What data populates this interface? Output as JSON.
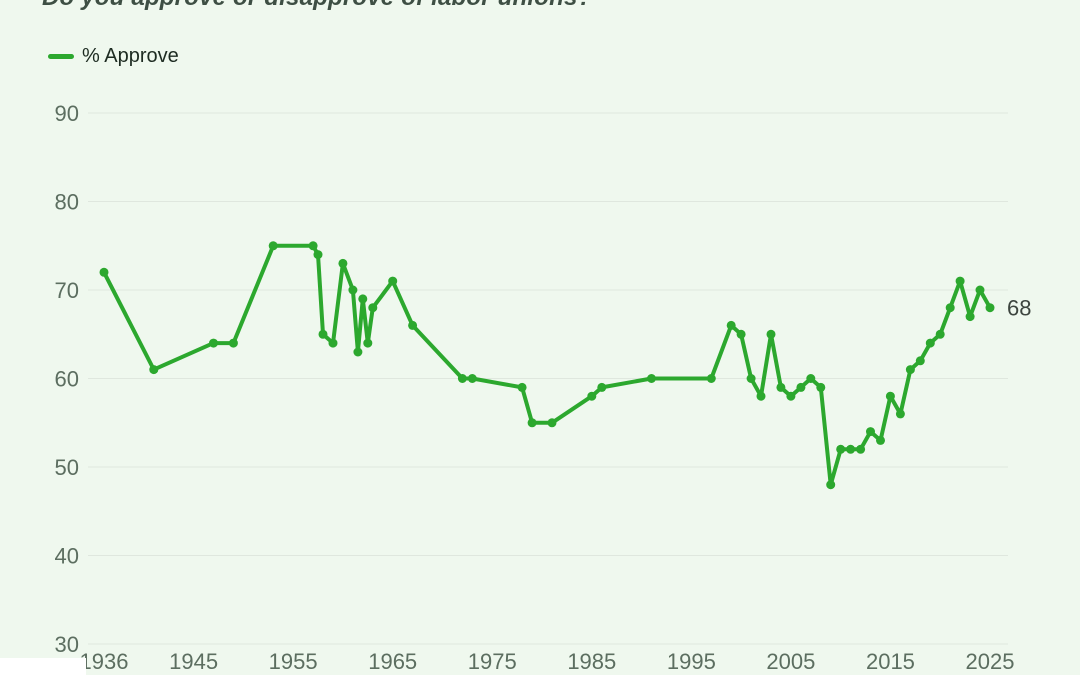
{
  "page": {
    "title": "Do you approve or disapprove of labor unions?"
  },
  "legend": {
    "label": "% Approve"
  },
  "colors": {
    "line": "#2ca82e",
    "background": "#eff8ee",
    "grid": "#dfe7de",
    "tick_text": "#5c6e60",
    "end_label_text": "#3d453f",
    "title_text": "#3e4f44",
    "legend_text": "#1d2b21"
  },
  "chart_data": {
    "type": "line",
    "title": "Do you approve or disapprove of labor unions?",
    "legend_entries": [
      "% Approve"
    ],
    "legend_position": "top-left",
    "grid": "horizontal",
    "xlim": [
      1936,
      2025
    ],
    "ylim": [
      30,
      90
    ],
    "xticks": [
      1936,
      1945,
      1955,
      1965,
      1975,
      1985,
      1995,
      2005,
      2015,
      2025
    ],
    "yticks": [
      90,
      80,
      70,
      60,
      50,
      40,
      30
    ],
    "end_label": "68",
    "series": [
      {
        "name": "% Approve",
        "color": "#2ca82e",
        "points": [
          [
            1936,
            72
          ],
          [
            1941,
            61
          ],
          [
            1947,
            64
          ],
          [
            1949,
            64
          ],
          [
            1953,
            75
          ],
          [
            1957,
            75
          ],
          [
            1957.5,
            74
          ],
          [
            1958,
            65
          ],
          [
            1959,
            64
          ],
          [
            1960,
            73
          ],
          [
            1961,
            70
          ],
          [
            1961.5,
            63
          ],
          [
            1962,
            69
          ],
          [
            1962.5,
            64
          ],
          [
            1963,
            68
          ],
          [
            1965,
            71
          ],
          [
            1967,
            66
          ],
          [
            1972,
            60
          ],
          [
            1973,
            60
          ],
          [
            1978,
            59
          ],
          [
            1979,
            55
          ],
          [
            1981,
            55
          ],
          [
            1985,
            58
          ],
          [
            1986,
            59
          ],
          [
            1991,
            60
          ],
          [
            1997,
            60
          ],
          [
            1999,
            66
          ],
          [
            2000,
            65
          ],
          [
            2001,
            60
          ],
          [
            2002,
            58
          ],
          [
            2003,
            65
          ],
          [
            2004,
            59
          ],
          [
            2005,
            58
          ],
          [
            2006,
            59
          ],
          [
            2007,
            60
          ],
          [
            2008,
            59
          ],
          [
            2009,
            48
          ],
          [
            2010,
            52
          ],
          [
            2011,
            52
          ],
          [
            2012,
            52
          ],
          [
            2013,
            54
          ],
          [
            2014,
            53
          ],
          [
            2015,
            58
          ],
          [
            2016,
            56
          ],
          [
            2017,
            61
          ],
          [
            2018,
            62
          ],
          [
            2019,
            64
          ],
          [
            2020,
            65
          ],
          [
            2021,
            68
          ],
          [
            2022,
            71
          ],
          [
            2023,
            67
          ],
          [
            2024,
            70
          ],
          [
            2025,
            68
          ]
        ]
      }
    ]
  }
}
